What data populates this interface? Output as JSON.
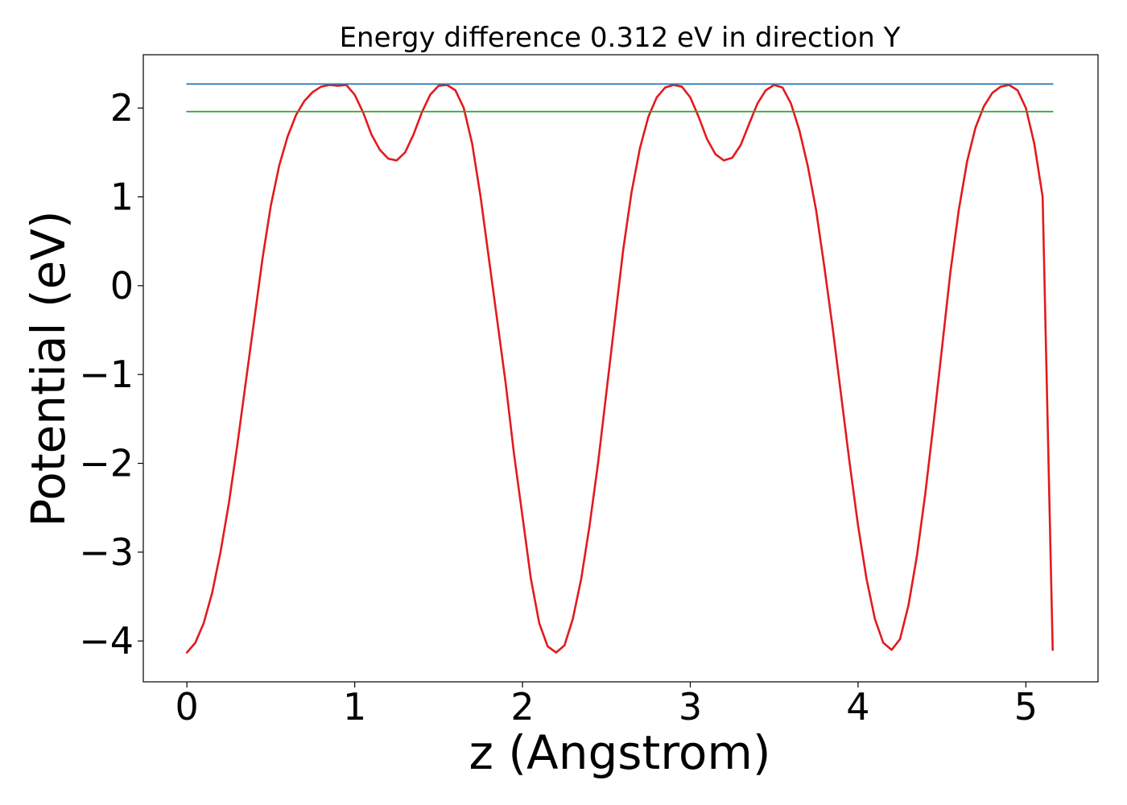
{
  "chart_data": {
    "type": "line",
    "title": "Energy difference 0.312 eV in direction Y",
    "xlabel": "z (Angstrom)",
    "ylabel": "Potential (eV)",
    "xlim": [
      -0.26,
      5.43
    ],
    "ylim": [
      -4.46,
      2.6
    ],
    "x_ticks": [
      {
        "value": 0,
        "label": "0"
      },
      {
        "value": 1,
        "label": "1"
      },
      {
        "value": 2,
        "label": "2"
      },
      {
        "value": 3,
        "label": "3"
      },
      {
        "value": 4,
        "label": "4"
      },
      {
        "value": 5,
        "label": "5"
      }
    ],
    "y_ticks": [
      {
        "value": -4,
        "label": "−4"
      },
      {
        "value": -3,
        "label": "−3"
      },
      {
        "value": -2,
        "label": "−2"
      },
      {
        "value": -1,
        "label": "−1"
      },
      {
        "value": 0,
        "label": "0"
      },
      {
        "value": 1,
        "label": "1"
      },
      {
        "value": 2,
        "label": "2"
      }
    ],
    "grid": false,
    "legend": "none",
    "series": [
      {
        "kind": "line",
        "color": "#e31a1c",
        "x": [
          0.0,
          0.05,
          0.1,
          0.15,
          0.2,
          0.25,
          0.3,
          0.35,
          0.4,
          0.45,
          0.5,
          0.55,
          0.6,
          0.65,
          0.7,
          0.75,
          0.8,
          0.85,
          0.9,
          0.95,
          1.0,
          1.05,
          1.1,
          1.15,
          1.2,
          1.25,
          1.3,
          1.35,
          1.4,
          1.45,
          1.5,
          1.55,
          1.6,
          1.65,
          1.7,
          1.75,
          1.8,
          1.85,
          1.9,
          1.95,
          2.0,
          2.05,
          2.1,
          2.15,
          2.2,
          2.25,
          2.3,
          2.35,
          2.4,
          2.45,
          2.5,
          2.55,
          2.6,
          2.65,
          2.7,
          2.75,
          2.8,
          2.85,
          2.9,
          2.95,
          3.0,
          3.05,
          3.1,
          3.15,
          3.2,
          3.25,
          3.3,
          3.35,
          3.4,
          3.45,
          3.5,
          3.55,
          3.6,
          3.65,
          3.7,
          3.75,
          3.8,
          3.85,
          3.9,
          3.95,
          4.0,
          4.05,
          4.1,
          4.15,
          4.2,
          4.25,
          4.3,
          4.35,
          4.4,
          4.45,
          4.5,
          4.55,
          4.6,
          4.65,
          4.7,
          4.75,
          4.8,
          4.85,
          4.9,
          4.95,
          5.0,
          5.05,
          5.1,
          5.16
        ],
        "y": [
          -4.13,
          -4.02,
          -3.8,
          -3.46,
          -3.0,
          -2.45,
          -1.8,
          -1.1,
          -0.4,
          0.3,
          0.9,
          1.35,
          1.68,
          1.92,
          2.08,
          2.18,
          2.24,
          2.26,
          2.25,
          2.26,
          2.15,
          1.95,
          1.7,
          1.53,
          1.43,
          1.41,
          1.5,
          1.7,
          1.95,
          2.15,
          2.25,
          2.26,
          2.2,
          2.0,
          1.6,
          1.0,
          0.3,
          -0.4,
          -1.1,
          -1.9,
          -2.6,
          -3.3,
          -3.8,
          -4.06,
          -4.13,
          -4.05,
          -3.75,
          -3.3,
          -2.7,
          -2.0,
          -1.2,
          -0.4,
          0.4,
          1.05,
          1.55,
          1.9,
          2.12,
          2.23,
          2.26,
          2.24,
          2.12,
          1.9,
          1.65,
          1.48,
          1.41,
          1.44,
          1.58,
          1.82,
          2.05,
          2.2,
          2.26,
          2.23,
          2.05,
          1.75,
          1.35,
          0.85,
          0.2,
          -0.5,
          -1.25,
          -2.0,
          -2.7,
          -3.3,
          -3.75,
          -4.02,
          -4.1,
          -3.98,
          -3.6,
          -3.05,
          -2.35,
          -1.55,
          -0.7,
          0.15,
          0.85,
          1.4,
          1.78,
          2.02,
          2.17,
          2.24,
          2.26,
          2.2,
          2.0,
          1.6,
          1.0,
          -4.1
        ]
      },
      {
        "kind": "hline",
        "color": "#1f77b4",
        "x": [
          0.0,
          5.16
        ],
        "y": [
          2.27,
          2.27
        ]
      },
      {
        "kind": "hline",
        "color": "#2ca02c",
        "x": [
          0.0,
          5.16
        ],
        "y": [
          1.96,
          1.96
        ]
      }
    ]
  }
}
